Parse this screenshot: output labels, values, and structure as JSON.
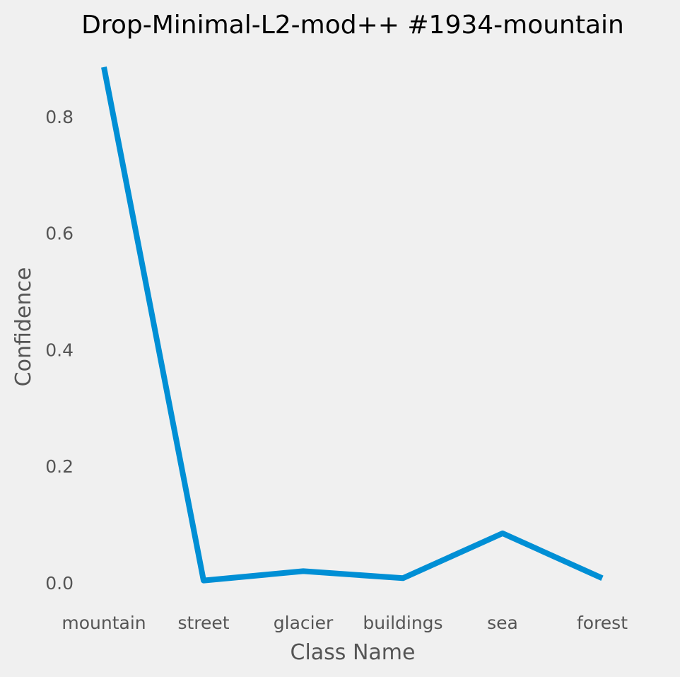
{
  "chart_data": {
    "type": "line",
    "title": "Drop-Minimal-L2-mod++ #1934-mountain",
    "xlabel": "Class Name",
    "ylabel": "Confidence",
    "categories": [
      "mountain",
      "street",
      "glacier",
      "buildings",
      "sea",
      "forest"
    ],
    "series": [
      {
        "values": [
          0.885,
          0.004,
          0.02,
          0.008,
          0.085,
          0.008
        ]
      }
    ],
    "yticks": [
      0.0,
      0.2,
      0.4,
      0.6,
      0.8
    ],
    "ytick_labels": [
      "0.0",
      "0.2",
      "0.4",
      "0.6",
      "0.8"
    ],
    "ylim": [
      -0.0438,
      0.9272
    ],
    "grid": false,
    "legend": "none",
    "colors": {
      "background": "#f0f0f0",
      "line": "#008fd5",
      "title": "#000000",
      "axis_text": "#555555"
    }
  }
}
